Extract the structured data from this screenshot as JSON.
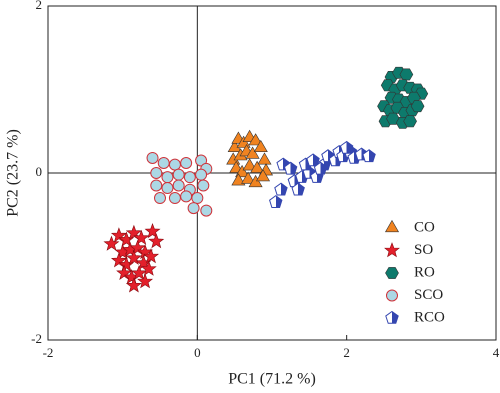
{
  "chart_data": {
    "type": "scatter",
    "xlabel": "PC1 (71.2 %)",
    "ylabel": "PC2 (23.7 %)",
    "xlim": [
      -2,
      4
    ],
    "ylim": [
      -2,
      2
    ],
    "xticks": [
      -2,
      0,
      2,
      4
    ],
    "yticks": [
      -2,
      0,
      2
    ],
    "grid": false,
    "legend": "lower right",
    "series": [
      {
        "name": "CO",
        "color": "#f08320",
        "marker": "triangle",
        "x": [
          0.5,
          0.55,
          0.62,
          0.7,
          0.78,
          0.48,
          0.58,
          0.66,
          0.74,
          0.85,
          0.9,
          0.52,
          0.6,
          0.7,
          0.8,
          0.92,
          0.55,
          0.68,
          0.78,
          0.88
        ],
        "y": [
          0.3,
          0.4,
          0.35,
          0.42,
          0.38,
          0.15,
          0.2,
          0.25,
          0.22,
          0.3,
          0.15,
          0.05,
          0.0,
          0.08,
          0.05,
          0.02,
          -0.1,
          -0.08,
          -0.12,
          -0.05
        ]
      },
      {
        "name": "SO",
        "color": "#e3202b",
        "marker": "star",
        "x": [
          -1.15,
          -1.05,
          -0.95,
          -0.85,
          -0.75,
          -0.6,
          -0.55,
          -1.0,
          -0.9,
          -0.8,
          -0.7,
          -1.05,
          -0.95,
          -0.85,
          -0.72,
          -0.62,
          -0.98,
          -0.88,
          -0.78,
          -0.7,
          -0.85,
          -0.65
        ],
        "y": [
          -0.85,
          -0.75,
          -0.8,
          -0.72,
          -0.78,
          -0.7,
          -0.82,
          -0.95,
          -0.92,
          -0.9,
          -0.95,
          -1.05,
          -1.1,
          -1.02,
          -1.08,
          -1.0,
          -1.2,
          -1.25,
          -1.2,
          -1.3,
          -1.35,
          -1.15
        ]
      },
      {
        "name": "RO",
        "color": "#0d7a6c",
        "marker": "hexagon",
        "x": [
          2.6,
          2.7,
          2.8,
          2.55,
          2.65,
          2.75,
          2.85,
          2.95,
          3.0,
          2.6,
          2.7,
          2.8,
          2.9,
          2.5,
          2.58,
          2.68,
          2.78,
          2.88,
          2.95,
          2.52,
          2.62,
          2.75,
          2.85
        ],
        "y": [
          1.15,
          1.2,
          1.18,
          1.05,
          1.0,
          1.05,
          1.02,
          1.0,
          0.95,
          0.9,
          0.88,
          0.85,
          0.9,
          0.8,
          0.75,
          0.78,
          0.72,
          0.75,
          0.8,
          0.62,
          0.65,
          0.6,
          0.62
        ]
      },
      {
        "name": "SCO",
        "color": "#acd8e5",
        "marker": "circle",
        "x": [
          -0.6,
          -0.45,
          -0.3,
          -0.15,
          0.05,
          0.12,
          -0.55,
          -0.4,
          -0.25,
          -0.1,
          0.05,
          -0.55,
          -0.4,
          -0.25,
          -0.1,
          0.08,
          -0.5,
          -0.3,
          -0.15,
          0.0,
          0.12,
          -0.05
        ],
        "y": [
          0.18,
          0.12,
          0.1,
          0.12,
          0.15,
          0.05,
          0.0,
          -0.05,
          -0.02,
          -0.05,
          -0.02,
          -0.15,
          -0.18,
          -0.15,
          -0.2,
          -0.15,
          -0.3,
          -0.3,
          -0.28,
          -0.3,
          -0.45,
          -0.42
        ]
      },
      {
        "name": "RCO",
        "color": "#3446b0",
        "marker": "pentagon",
        "x": [
          1.05,
          1.12,
          1.15,
          1.25,
          1.3,
          1.4,
          1.5,
          1.45,
          1.55,
          1.6,
          1.7,
          1.75,
          1.85,
          1.9,
          1.95,
          2.05,
          2.1,
          2.2,
          2.3,
          1.35,
          1.65,
          2.0
        ],
        "y": [
          -0.35,
          -0.2,
          0.1,
          0.05,
          -0.1,
          -0.05,
          0.0,
          0.1,
          0.15,
          -0.05,
          0.1,
          0.2,
          0.15,
          0.25,
          0.2,
          0.25,
          0.18,
          0.22,
          0.2,
          -0.2,
          0.05,
          0.3
        ]
      }
    ]
  }
}
